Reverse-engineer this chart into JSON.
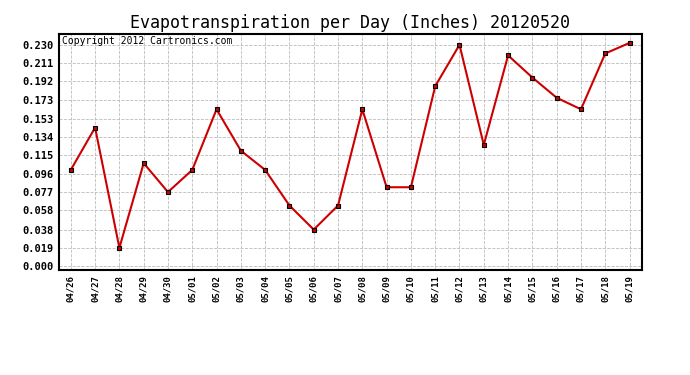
{
  "title": "Evapotranspiration per Day (Inches) 20120520",
  "copyright_text": "Copyright 2012 Cartronics.com",
  "x_labels": [
    "04/26",
    "04/27",
    "04/28",
    "04/29",
    "04/30",
    "05/01",
    "05/02",
    "05/03",
    "05/04",
    "05/05",
    "05/06",
    "05/07",
    "05/08",
    "05/09",
    "05/10",
    "05/11",
    "05/12",
    "05/13",
    "05/14",
    "05/15",
    "05/16",
    "05/17",
    "05/18",
    "05/19"
  ],
  "y_values": [
    0.1,
    0.144,
    0.019,
    0.107,
    0.077,
    0.1,
    0.163,
    0.12,
    0.1,
    0.063,
    0.038,
    0.063,
    0.163,
    0.082,
    0.082,
    0.187,
    0.23,
    0.126,
    0.219,
    0.196,
    0.175,
    0.163,
    0.221,
    0.232
  ],
  "y_ticks": [
    0.0,
    0.019,
    0.038,
    0.058,
    0.077,
    0.096,
    0.115,
    0.134,
    0.153,
    0.173,
    0.192,
    0.211,
    0.23
  ],
  "line_color": "#cc0000",
  "marker": "s",
  "marker_size": 3,
  "grid_color": "#bbbbbb",
  "background_color": "#ffffff",
  "plot_bg_color": "#ffffff",
  "ylim": [
    -0.004,
    0.2415
  ],
  "title_fontsize": 12,
  "copyright_fontsize": 7
}
